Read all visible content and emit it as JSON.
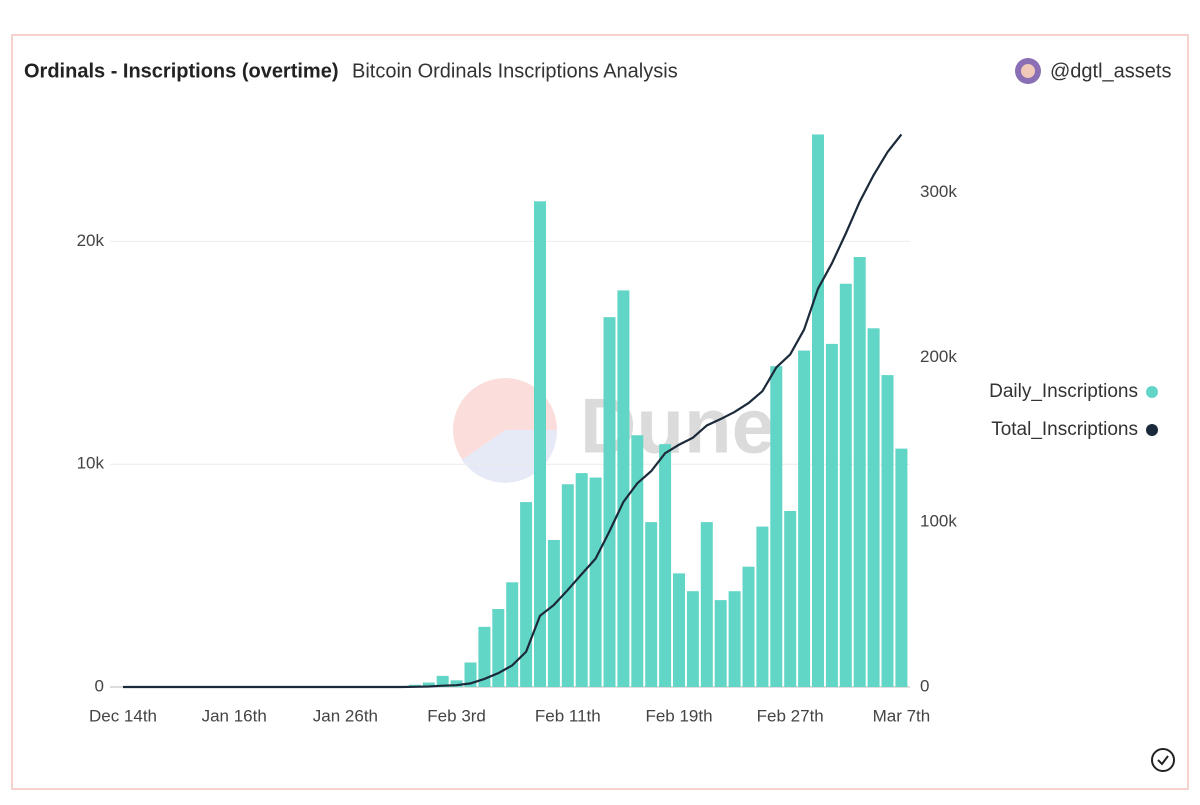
{
  "chart_data": {
    "type": "bar",
    "title": "Ordinals - Inscriptions (overtime)",
    "subtitle": "Bitcoin Ordinals Inscriptions Analysis",
    "author": "@dgtl_assets",
    "watermark": "Dune",
    "categories": [
      "Dec 14th",
      null,
      null,
      null,
      null,
      null,
      null,
      null,
      "Jan 16th",
      null,
      null,
      null,
      null,
      null,
      null,
      null,
      "Jan 26th",
      null,
      null,
      null,
      null,
      null,
      null,
      null,
      "Feb 3rd",
      null,
      null,
      null,
      null,
      null,
      null,
      null,
      "Feb 11th",
      null,
      null,
      null,
      null,
      null,
      null,
      null,
      "Feb 19th",
      null,
      null,
      null,
      null,
      null,
      null,
      null,
      "Feb 27th",
      null,
      null,
      null,
      null,
      null,
      null,
      null,
      "Mar 7th"
    ],
    "series": [
      {
        "name": "Daily_Inscriptions",
        "type": "bar",
        "color": "#62d6c6",
        "values": [
          0,
          0,
          0,
          0,
          0,
          0,
          0,
          0,
          0,
          0,
          0,
          0,
          0,
          0,
          0,
          0,
          0,
          0,
          0,
          0,
          0,
          100,
          200,
          500,
          300,
          1100,
          2700,
          3500,
          4700,
          8300,
          21800,
          6600,
          9100,
          9600,
          9400,
          16600,
          17800,
          11300,
          7400,
          10900,
          5100,
          4300,
          7400,
          3900,
          4300,
          5400,
          7200,
          14400,
          7900,
          15100,
          24800,
          15400,
          18100,
          19300,
          16100,
          14000,
          10700
        ]
      },
      {
        "name": "Total_Inscriptions",
        "type": "line",
        "axis": "y2",
        "color": "#1b2a3a",
        "values": [
          0,
          0,
          0,
          0,
          0,
          0,
          0,
          0,
          0,
          0,
          0,
          0,
          0,
          0,
          0,
          0,
          0,
          0,
          0,
          0,
          0,
          100,
          300,
          800,
          1100,
          2200,
          4900,
          8400,
          13100,
          21400,
          43200,
          49800,
          58900,
          68500,
          77900,
          94500,
          112300,
          123600,
          131000,
          141900,
          147000,
          151300,
          158700,
          162600,
          166900,
          172300,
          179500,
          193900,
          201800,
          216900,
          241700,
          257100,
          275200,
          294500,
          310600,
          324600,
          335300
        ]
      }
    ],
    "ylim": [
      0,
      25000
    ],
    "yticks": [
      0,
      {
        "value": 10000,
        "label": "10k"
      },
      {
        "value": 20000,
        "label": "20k"
      }
    ],
    "y2lim": [
      0,
      338000
    ],
    "y2ticks": [
      0,
      {
        "value": 100000,
        "label": "100k"
      },
      {
        "value": 200000,
        "label": "200k"
      },
      {
        "value": 300000,
        "label": "300k"
      }
    ],
    "grid": true,
    "legend": "right"
  }
}
